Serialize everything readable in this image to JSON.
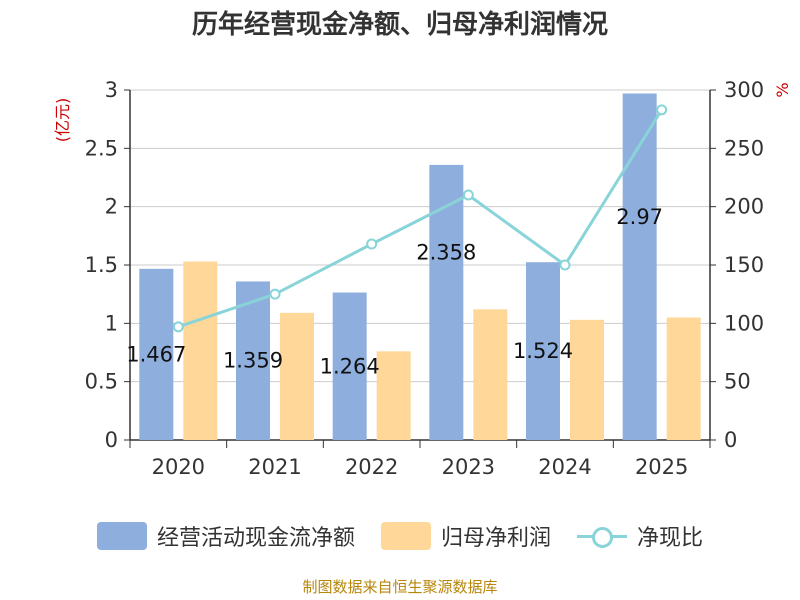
{
  "title": "历年经营现金净额、归母净利润情况",
  "footer": "制图数据来自恒生聚源数据库",
  "colors": {
    "bar1": "#8eaedd",
    "bar2": "#ffd899",
    "line": "#88d4d8",
    "axis_label": "#cc0000"
  },
  "chart_data": {
    "type": "bar",
    "categories": [
      "2020",
      "2021",
      "2022",
      "2023",
      "2024",
      "2025"
    ],
    "left_axis": {
      "label": "(亿元)",
      "ylim": [
        0,
        3
      ],
      "ticks": [
        "0",
        "0.5",
        "1",
        "1.5",
        "2",
        "2.5",
        "3"
      ]
    },
    "right_axis": {
      "label": "%",
      "ylim": [
        0,
        300
      ],
      "ticks": [
        "0",
        "50",
        "100",
        "150",
        "200",
        "250",
        "300"
      ]
    },
    "series": [
      {
        "name": "经营活动现金流净额",
        "type": "bar",
        "axis": "left",
        "values": [
          1.467,
          1.359,
          1.264,
          2.358,
          1.524,
          2.97
        ],
        "labels": [
          "1.467",
          "1.359",
          "1.264",
          "2.358",
          "1.524",
          "2.97"
        ]
      },
      {
        "name": "归母净利润",
        "type": "bar",
        "axis": "left",
        "values": [
          1.53,
          1.09,
          0.76,
          1.12,
          1.03,
          1.05
        ]
      },
      {
        "name": "净现比",
        "type": "line",
        "axis": "right",
        "values": [
          97,
          125,
          168,
          210,
          150,
          283
        ]
      }
    ],
    "grid": true,
    "legend": "bottom"
  }
}
